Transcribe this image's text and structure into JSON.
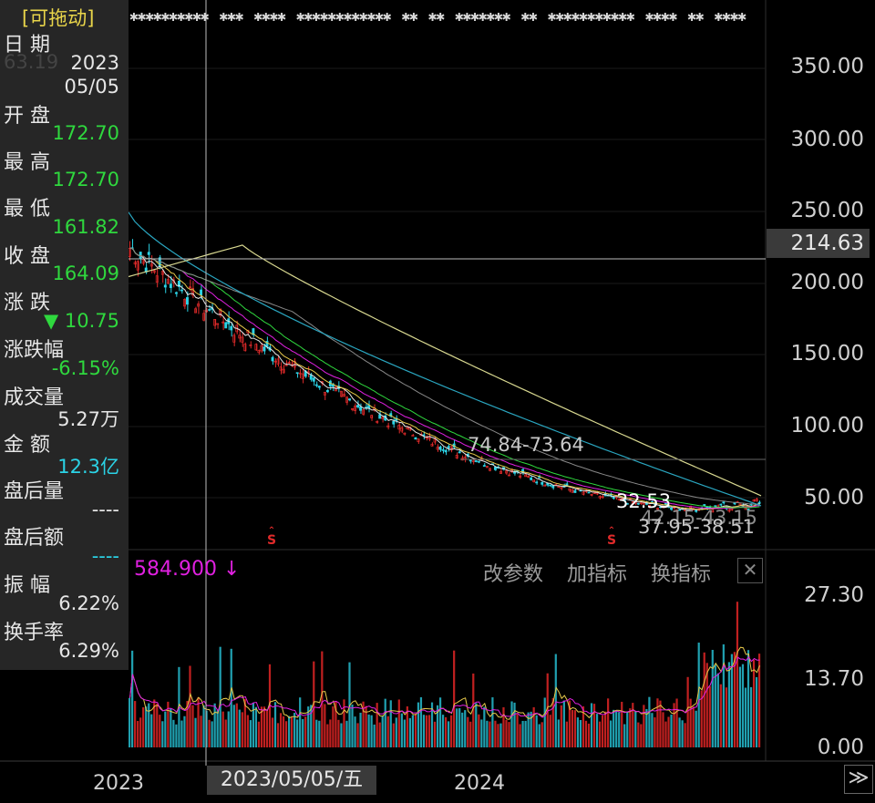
{
  "top_legend": {
    "items": [
      "✱✱✱✱✱✱✱✱✱✱",
      "✱✱✱",
      "✱✱✱✱",
      "✱✱✱✱✱✱✱✱✱✱✱✱",
      "✱✱",
      "✱✱",
      "✱✱✱✱✱✱✱",
      "✱✱",
      "✱✱✱✱✱✱✱✱✱✱✱",
      "✱✱✱✱",
      "✱✱",
      "✱✱✱✱"
    ]
  },
  "info_panel": {
    "drag_label": "[可拖动]",
    "faded_price": "63.19",
    "rows": [
      {
        "label": "日  期",
        "value": "2023"
      },
      {
        "label": "",
        "value": "05/05"
      },
      {
        "label": "开  盘",
        "value": "172.70"
      },
      {
        "label": "最  高",
        "value": "172.70"
      },
      {
        "label": "最  低",
        "value": "161.82"
      },
      {
        "label": "收  盘",
        "value": "164.09"
      },
      {
        "label": "涨  跌",
        "value": "▼ 10.75"
      },
      {
        "label": "涨跌幅",
        "value": "-6.15%"
      },
      {
        "label": "成交量",
        "value": "5.27万"
      },
      {
        "label": "金  额",
        "value": "12.3亿"
      },
      {
        "label": "盘后量",
        "value": "----"
      },
      {
        "label": "盘后额",
        "value": "----"
      },
      {
        "label": "振  幅",
        "value": "6.22%"
      },
      {
        "label": "换手率",
        "value": "6.29%"
      }
    ]
  },
  "price_axis": {
    "ticks": [
      "350.00",
      "300.00",
      "250.00",
      "200.00",
      "150.00",
      "100.00",
      "50.00"
    ],
    "current_price": "214.63"
  },
  "annotations": {
    "range_high": "74.84-73.64",
    "low_marker": "32.53",
    "range_mid": "42.15-43.15",
    "range_low": "37.95-38.51",
    "signal": "S"
  },
  "indicator_bar": {
    "value": "584.900 ↓",
    "modify_params": "改参数",
    "add_indicator": "加指标",
    "change_indicator": "换指标",
    "close": "✕"
  },
  "volume_axis": {
    "ticks": [
      "27.30",
      "13.70",
      "0.00"
    ]
  },
  "date_axis": {
    "label_2023": "2023",
    "label_2024": "2024",
    "cursor_date": "2023/05/05/五",
    "nav": "≫"
  },
  "colors": {
    "background": "#000000",
    "panel": "#262626",
    "up": "#e02a2a",
    "down": "#2fd83e",
    "cyan": "#2bd3e6",
    "magenta": "#e020e0"
  }
}
